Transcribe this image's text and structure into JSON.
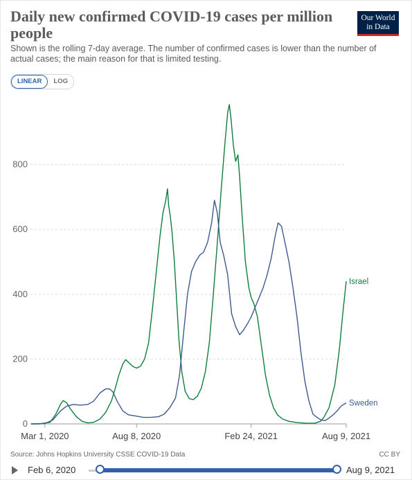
{
  "header": {
    "title": "Daily new confirmed COVID-19 cases per million people",
    "subtitle": "Shown is the rolling 7-day average. The number of confirmed cases is lower than the number of actual cases; the main reason for that is limited testing.",
    "logo_line1": "Our World",
    "logo_line2": "in Data"
  },
  "controls": {
    "linear_label": "LINEAR",
    "log_label": "LOG"
  },
  "footer": {
    "source": "Source: Johns Hopkins University CSSE COVID-19 Data",
    "license": "CC BY"
  },
  "timeline": {
    "start_label": "Feb 6, 2020",
    "end_label": "Aug 9, 2021"
  },
  "colors": {
    "israel": "#0e7e3e",
    "sweden": "#3c5a8f",
    "accent": "#3360a9",
    "grid": "#dddddd"
  },
  "chart_data": {
    "type": "line",
    "yticks": [
      0,
      200,
      400,
      600,
      800
    ],
    "ylim": [
      0,
      1000
    ],
    "xlim": [
      "2020-02-06",
      "2021-08-09"
    ],
    "xticks": [
      {
        "label": "Mar 1, 2020",
        "date": "2020-03-01"
      },
      {
        "label": "Aug 8, 2020",
        "date": "2020-08-08"
      },
      {
        "label": "Feb 24, 2021",
        "date": "2021-02-24"
      },
      {
        "label": "Aug 9, 2021",
        "date": "2021-08-09"
      }
    ],
    "series": [
      {
        "name": "Israel",
        "points": [
          [
            "2020-02-06",
            0
          ],
          [
            "2020-02-20",
            0
          ],
          [
            "2020-03-10",
            5
          ],
          [
            "2020-03-20",
            30
          ],
          [
            "2020-03-28",
            60
          ],
          [
            "2020-04-02",
            72
          ],
          [
            "2020-04-08",
            65
          ],
          [
            "2020-04-15",
            45
          ],
          [
            "2020-04-25",
            22
          ],
          [
            "2020-05-05",
            8
          ],
          [
            "2020-05-15",
            3
          ],
          [
            "2020-05-25",
            5
          ],
          [
            "2020-06-05",
            15
          ],
          [
            "2020-06-15",
            35
          ],
          [
            "2020-06-25",
            70
          ],
          [
            "2020-07-01",
            105
          ],
          [
            "2020-07-08",
            150
          ],
          [
            "2020-07-15",
            185
          ],
          [
            "2020-07-20",
            198
          ],
          [
            "2020-07-25",
            190
          ],
          [
            "2020-08-01",
            178
          ],
          [
            "2020-08-08",
            172
          ],
          [
            "2020-08-15",
            178
          ],
          [
            "2020-08-22",
            200
          ],
          [
            "2020-08-29",
            250
          ],
          [
            "2020-09-05",
            360
          ],
          [
            "2020-09-12",
            480
          ],
          [
            "2020-09-18",
            580
          ],
          [
            "2020-09-23",
            650
          ],
          [
            "2020-09-28",
            690
          ],
          [
            "2020-10-01",
            725
          ],
          [
            "2020-10-03",
            675
          ],
          [
            "2020-10-06",
            640
          ],
          [
            "2020-10-09",
            590
          ],
          [
            "2020-10-13",
            500
          ],
          [
            "2020-10-17",
            380
          ],
          [
            "2020-10-21",
            260
          ],
          [
            "2020-10-26",
            160
          ],
          [
            "2020-11-01",
            100
          ],
          [
            "2020-11-08",
            78
          ],
          [
            "2020-11-15",
            75
          ],
          [
            "2020-11-22",
            85
          ],
          [
            "2020-11-29",
            110
          ],
          [
            "2020-12-06",
            160
          ],
          [
            "2020-12-13",
            250
          ],
          [
            "2020-12-20",
            400
          ],
          [
            "2020-12-27",
            560
          ],
          [
            "2021-01-03",
            730
          ],
          [
            "2021-01-09",
            860
          ],
          [
            "2021-01-14",
            960
          ],
          [
            "2021-01-17",
            985
          ],
          [
            "2021-01-20",
            940
          ],
          [
            "2021-01-24",
            860
          ],
          [
            "2021-01-28",
            810
          ],
          [
            "2021-02-01",
            830
          ],
          [
            "2021-02-04",
            760
          ],
          [
            "2021-02-08",
            650
          ],
          [
            "2021-02-14",
            500
          ],
          [
            "2021-02-20",
            420
          ],
          [
            "2021-02-24",
            390
          ],
          [
            "2021-03-01",
            370
          ],
          [
            "2021-03-07",
            330
          ],
          [
            "2021-03-14",
            240
          ],
          [
            "2021-03-21",
            150
          ],
          [
            "2021-03-28",
            90
          ],
          [
            "2021-04-04",
            50
          ],
          [
            "2021-04-11",
            28
          ],
          [
            "2021-04-20",
            15
          ],
          [
            "2021-05-01",
            8
          ],
          [
            "2021-05-15",
            4
          ],
          [
            "2021-06-01",
            2
          ],
          [
            "2021-06-15",
            2
          ],
          [
            "2021-06-25",
            8
          ],
          [
            "2021-07-01",
            20
          ],
          [
            "2021-07-10",
            50
          ],
          [
            "2021-07-20",
            120
          ],
          [
            "2021-07-28",
            230
          ],
          [
            "2021-08-03",
            340
          ],
          [
            "2021-08-09",
            440
          ]
        ]
      },
      {
        "name": "Sweden",
        "points": [
          [
            "2020-02-06",
            0
          ],
          [
            "2020-03-01",
            1
          ],
          [
            "2020-03-15",
            12
          ],
          [
            "2020-03-28",
            40
          ],
          [
            "2020-04-08",
            55
          ],
          [
            "2020-04-20",
            60
          ],
          [
            "2020-05-01",
            58
          ],
          [
            "2020-05-15",
            60
          ],
          [
            "2020-05-25",
            70
          ],
          [
            "2020-06-05",
            95
          ],
          [
            "2020-06-15",
            108
          ],
          [
            "2020-06-22",
            108
          ],
          [
            "2020-06-28",
            98
          ],
          [
            "2020-07-05",
            70
          ],
          [
            "2020-07-15",
            40
          ],
          [
            "2020-07-25",
            28
          ],
          [
            "2020-08-08",
            24
          ],
          [
            "2020-08-20",
            20
          ],
          [
            "2020-09-01",
            20
          ],
          [
            "2020-09-15",
            22
          ],
          [
            "2020-09-25",
            30
          ],
          [
            "2020-10-05",
            50
          ],
          [
            "2020-10-15",
            80
          ],
          [
            "2020-10-22",
            150
          ],
          [
            "2020-10-29",
            280
          ],
          [
            "2020-11-05",
            400
          ],
          [
            "2020-11-12",
            470
          ],
          [
            "2020-11-19",
            500
          ],
          [
            "2020-11-26",
            520
          ],
          [
            "2020-12-03",
            530
          ],
          [
            "2020-12-10",
            560
          ],
          [
            "2020-12-17",
            620
          ],
          [
            "2020-12-22",
            690
          ],
          [
            "2020-12-27",
            650
          ],
          [
            "2021-01-01",
            560
          ],
          [
            "2021-01-07",
            520
          ],
          [
            "2021-01-14",
            460
          ],
          [
            "2021-01-21",
            340
          ],
          [
            "2021-01-28",
            300
          ],
          [
            "2021-02-04",
            275
          ],
          [
            "2021-02-11",
            290
          ],
          [
            "2021-02-18",
            310
          ],
          [
            "2021-02-24",
            330
          ],
          [
            "2021-03-03",
            360
          ],
          [
            "2021-03-10",
            390
          ],
          [
            "2021-03-17",
            420
          ],
          [
            "2021-03-24",
            460
          ],
          [
            "2021-03-31",
            510
          ],
          [
            "2021-04-07",
            580
          ],
          [
            "2021-04-12",
            620
          ],
          [
            "2021-04-18",
            610
          ],
          [
            "2021-04-24",
            560
          ],
          [
            "2021-05-01",
            500
          ],
          [
            "2021-05-08",
            420
          ],
          [
            "2021-05-15",
            330
          ],
          [
            "2021-05-22",
            220
          ],
          [
            "2021-05-29",
            130
          ],
          [
            "2021-06-05",
            70
          ],
          [
            "2021-06-12",
            30
          ],
          [
            "2021-06-19",
            20
          ],
          [
            "2021-06-26",
            12
          ],
          [
            "2021-07-03",
            10
          ],
          [
            "2021-07-10",
            18
          ],
          [
            "2021-07-17",
            28
          ],
          [
            "2021-07-24",
            40
          ],
          [
            "2021-07-31",
            55
          ],
          [
            "2021-08-09",
            65
          ]
        ]
      }
    ]
  }
}
